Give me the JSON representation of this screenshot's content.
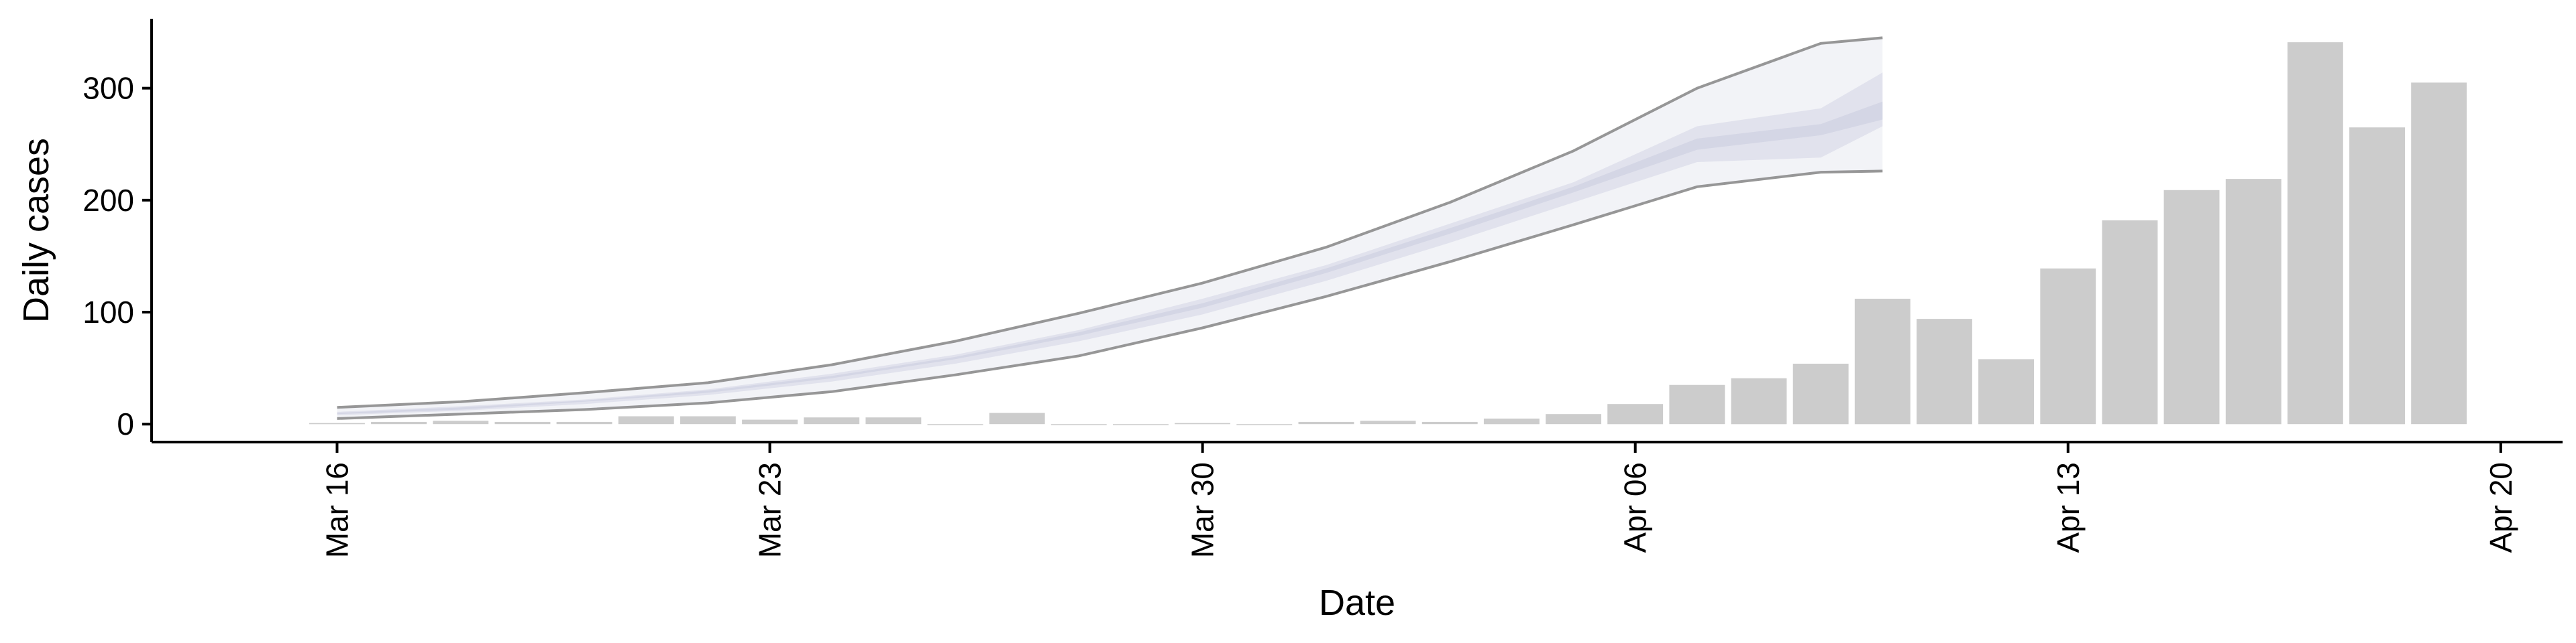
{
  "chart_data": {
    "type": "bar",
    "xlabel": "Date",
    "ylabel": "Daily cases",
    "ylim": [
      -16,
      362
    ],
    "yticks": [
      0,
      100,
      200,
      300
    ],
    "xticks": [
      {
        "label": "Mar 16",
        "date": "2020-03-16"
      },
      {
        "label": "Mar 23",
        "date": "2020-03-23"
      },
      {
        "label": "Mar 30",
        "date": "2020-03-30"
      },
      {
        "label": "Apr 06",
        "date": "2020-04-06"
      },
      {
        "label": "Apr 13",
        "date": "2020-04-13"
      },
      {
        "label": "Apr 20",
        "date": "2020-04-20"
      }
    ],
    "xlim": [
      "2020-03-13",
      "2020-04-21"
    ],
    "grid": false,
    "bars": {
      "color": "#cccccc",
      "dates": [
        "2020-03-16",
        "2020-03-17",
        "2020-03-18",
        "2020-03-19",
        "2020-03-20",
        "2020-03-21",
        "2020-03-22",
        "2020-03-23",
        "2020-03-24",
        "2020-03-25",
        "2020-03-26",
        "2020-03-27",
        "2020-03-28",
        "2020-03-29",
        "2020-03-30",
        "2020-03-31",
        "2020-04-01",
        "2020-04-02",
        "2020-04-03",
        "2020-04-04",
        "2020-04-05",
        "2020-04-06",
        "2020-04-07",
        "2020-04-08",
        "2020-04-09",
        "2020-04-10",
        "2020-04-11",
        "2020-04-12",
        "2020-04-13",
        "2020-04-14",
        "2020-04-15",
        "2020-04-16",
        "2020-04-17",
        "2020-04-18",
        "2020-04-19"
      ],
      "values": [
        1,
        2,
        3,
        2,
        2,
        7,
        7,
        4,
        6,
        6,
        0,
        10,
        0,
        0,
        1,
        0,
        2,
        3,
        2,
        5,
        9,
        18,
        35,
        41,
        54,
        112,
        94,
        58,
        139,
        182,
        209,
        219,
        341,
        265,
        305
      ]
    },
    "forecast": {
      "band_color": "#c5c8dc",
      "line_color": "#8c8c8c",
      "dates": [
        "2020-03-16",
        "2020-03-18",
        "2020-03-20",
        "2020-03-22",
        "2020-03-24",
        "2020-03-26",
        "2020-03-28",
        "2020-03-30",
        "2020-04-01",
        "2020-04-03",
        "2020-04-05",
        "2020-04-07",
        "2020-04-09",
        "2020-04-10"
      ],
      "lower_95": [
        5,
        9,
        13,
        19,
        29,
        44,
        61,
        86,
        114,
        145,
        178,
        212,
        225,
        226
      ],
      "upper_95": [
        15,
        20,
        28,
        37,
        53,
        74,
        99,
        126,
        158,
        198,
        244,
        300,
        340,
        345
      ],
      "lower_50": [
        8,
        12,
        18,
        26,
        38,
        54,
        74,
        98,
        128,
        162,
        198,
        234,
        238,
        266
      ],
      "upper_50": [
        11,
        16,
        22,
        31,
        45,
        62,
        84,
        112,
        142,
        179,
        216,
        266,
        282,
        314
      ],
      "lower_inner": [
        9,
        13,
        20,
        28,
        41,
        58,
        79,
        104,
        135,
        170,
        207,
        245,
        258,
        272
      ],
      "upper_inner": [
        10,
        15,
        21,
        30,
        43,
        60,
        82,
        108,
        139,
        175,
        212,
        255,
        268,
        288
      ]
    }
  }
}
